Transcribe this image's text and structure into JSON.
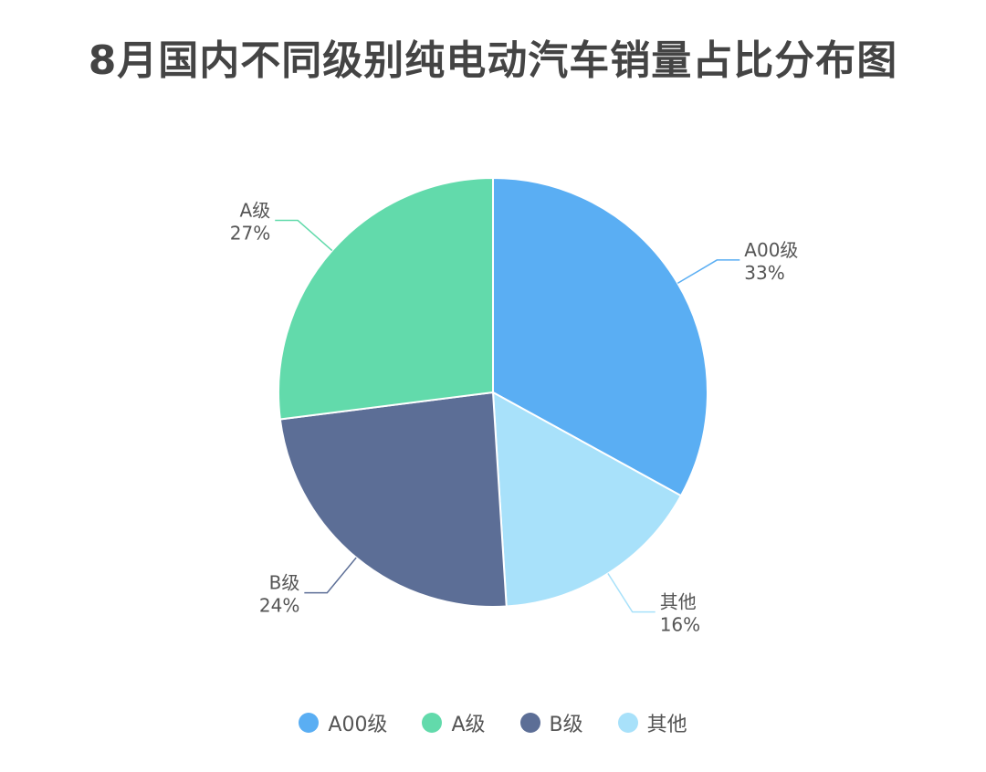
{
  "chart_data": {
    "type": "pie",
    "title": "8月国内不同级别纯电动汽车销量占比分布图",
    "categories": [
      "A00级",
      "其他",
      "B级",
      "A级"
    ],
    "values": [
      33,
      16,
      24,
      27
    ],
    "labels": [
      "33%",
      "16%",
      "24%",
      "27%"
    ],
    "colors": [
      "#5AAEF3",
      "#A8E1FA",
      "#5C6E96",
      "#62DAAB"
    ],
    "legend": {
      "placement": "bottom",
      "entries": [
        "A00级",
        "A级",
        "B级",
        "其他"
      ],
      "colors": [
        "#5AAEF3",
        "#62DAAB",
        "#5C6E96",
        "#A8E1FA"
      ]
    },
    "start_angle": "top, clockwise"
  }
}
